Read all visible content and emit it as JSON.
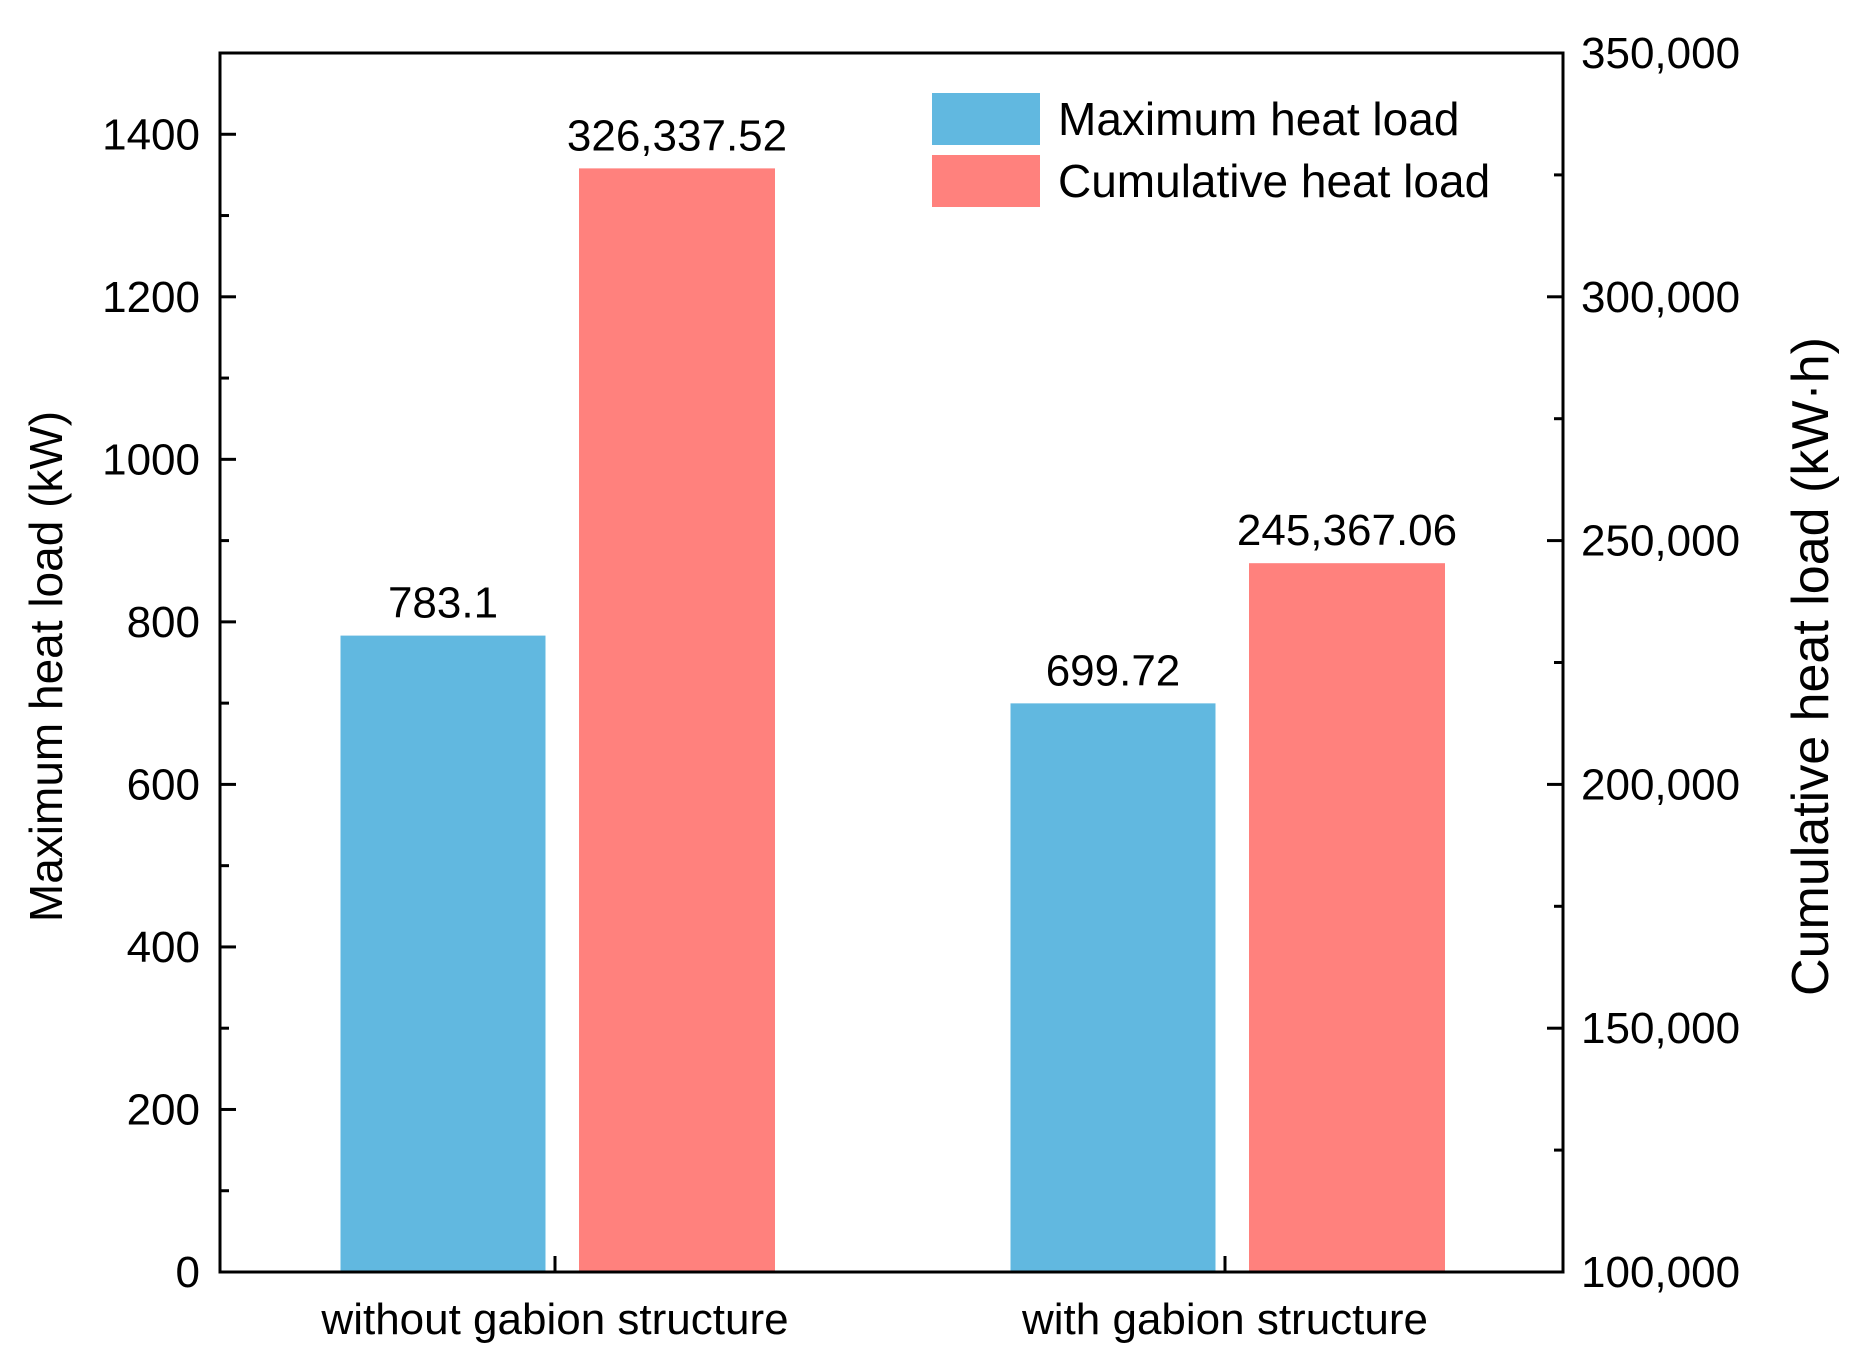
{
  "chart_data": {
    "type": "bar",
    "categories": [
      "without gabion structure",
      "with gabion structure"
    ],
    "series": [
      {
        "name": "Maximum heat load",
        "axis": "left",
        "color": "#61b8e0",
        "values": [
          783.1,
          699.72
        ],
        "labels": [
          "783.1",
          "699.72"
        ]
      },
      {
        "name": "Cumulative heat load",
        "axis": "right",
        "color": "#ff817d",
        "values": [
          326337.52,
          245367.06
        ],
        "labels": [
          "326,337.52",
          "245,367.06"
        ]
      }
    ],
    "y_left": {
      "label": "Maximum heat load (kW)",
      "range": [
        0,
        1500
      ],
      "ticks": [
        0,
        200,
        400,
        600,
        800,
        1000,
        1200,
        1400
      ],
      "tick_labels": [
        "0",
        "200",
        "400",
        "600",
        "800",
        "1000",
        "1200",
        "1400"
      ],
      "minor_step": 100
    },
    "y_right": {
      "label": "Cumulative heat load (kW·h)",
      "range": [
        100000,
        350000
      ],
      "ticks": [
        100000,
        150000,
        200000,
        250000,
        300000,
        350000
      ],
      "tick_labels": [
        "100,000",
        "150,000",
        "200,000",
        "250,000",
        "300,000",
        "350,000"
      ],
      "minor_step": 25000
    },
    "legend": {
      "position": "top-right",
      "entries": [
        "Maximum heat load",
        "Cumulative heat load"
      ]
    },
    "grid": false
  }
}
